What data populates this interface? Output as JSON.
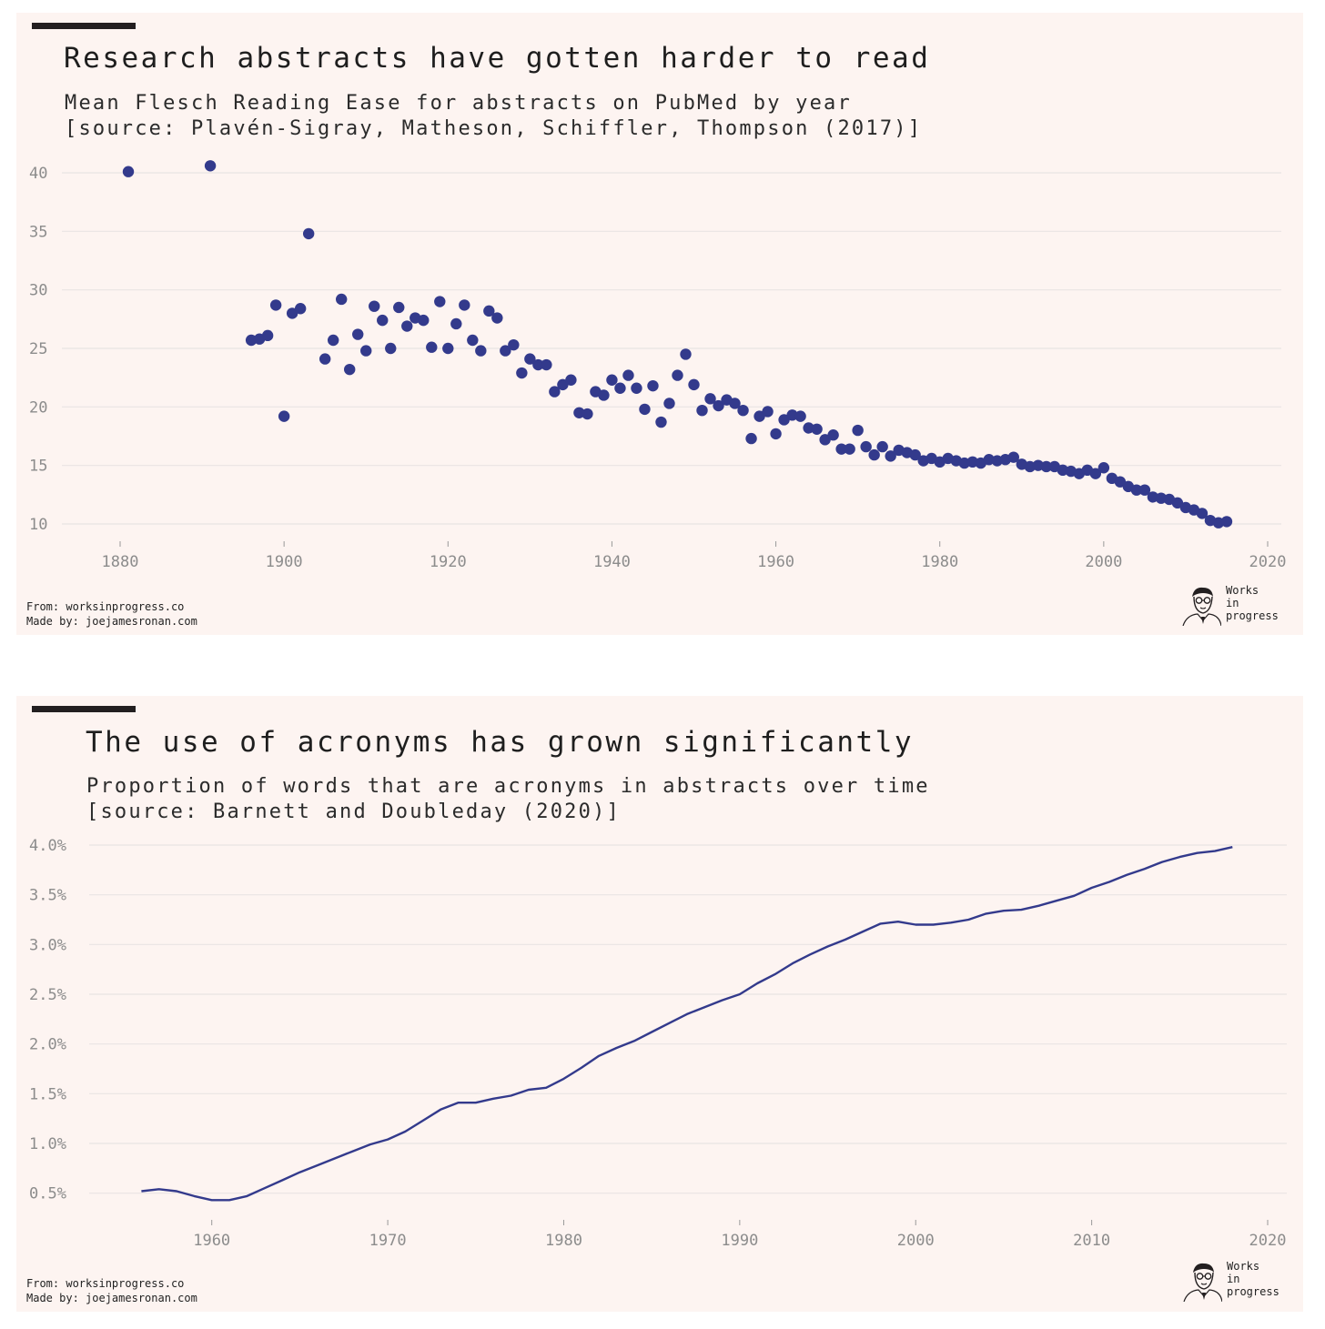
{
  "colors": {
    "panel_bg": "#fdf4f1",
    "mark": "#333a8c",
    "grid": "#e9e4e3",
    "tick_text": "#8c8c8c"
  },
  "charts": [
    {
      "title": "Research abstracts have gotten harder to read",
      "subtitle_line1": "Mean Flesch Reading Ease for abstracts on PubMed by year",
      "subtitle_line2": "[source: Plavén-Sigray, Matheson, Schiffler, Thompson (2017)]",
      "credit_from": "From: worksinprogress.co",
      "credit_made": "Made by: joejamesronan.com",
      "logo": {
        "icon": "portrait-sketch-icon",
        "line1": "Works",
        "line2": "in",
        "line3": "progress"
      }
    },
    {
      "title": "The use of acronyms has grown significantly",
      "subtitle_line1": "Proportion of words that are acronyms in abstracts over time",
      "subtitle_line2": "[source: Barnett and Doubleday (2020)]",
      "credit_from": "From: worksinprogress.co",
      "credit_made": "Made by: joejamesronan.com",
      "logo": {
        "icon": "portrait-sketch-icon",
        "line1": "Works",
        "line2": "in",
        "line3": "progress"
      }
    }
  ],
  "chart_data": [
    {
      "type": "scatter",
      "title": "Research abstracts have gotten harder to read",
      "subtitle": "Mean Flesch Reading Ease for abstracts on PubMed by year [source: Plavén-Sigray, Matheson, Schiffler, Thompson (2017)]",
      "xlabel": "",
      "ylabel": "",
      "xlim": [
        1879,
        2020
      ],
      "ylim": [
        10,
        40
      ],
      "xticks": [
        1880,
        1900,
        1920,
        1940,
        1960,
        1980,
        2000,
        2020
      ],
      "yticks": [
        10,
        15,
        20,
        25,
        30,
        35,
        40
      ],
      "grid": "horizontal",
      "legend": "none",
      "points": [
        [
          1881,
          40.1
        ],
        [
          1891,
          40.6
        ],
        [
          1896,
          25.7
        ],
        [
          1897,
          25.8
        ],
        [
          1898,
          26.1
        ],
        [
          1899,
          28.7
        ],
        [
          1900,
          19.2
        ],
        [
          1901,
          28.0
        ],
        [
          1902,
          28.4
        ],
        [
          1903,
          34.8
        ],
        [
          1905,
          24.1
        ],
        [
          1906,
          25.7
        ],
        [
          1907,
          29.2
        ],
        [
          1908,
          23.2
        ],
        [
          1909,
          26.2
        ],
        [
          1910,
          24.8
        ],
        [
          1911,
          28.6
        ],
        [
          1912,
          27.4
        ],
        [
          1913,
          25.0
        ],
        [
          1914,
          28.5
        ],
        [
          1915,
          26.9
        ],
        [
          1916,
          27.6
        ],
        [
          1917,
          27.4
        ],
        [
          1918,
          25.1
        ],
        [
          1919,
          29.0
        ],
        [
          1920,
          25.0
        ],
        [
          1921,
          27.1
        ],
        [
          1922,
          28.7
        ],
        [
          1923,
          25.7
        ],
        [
          1924,
          24.8
        ],
        [
          1925,
          28.2
        ],
        [
          1926,
          27.6
        ],
        [
          1927,
          24.8
        ],
        [
          1928,
          25.3
        ],
        [
          1929,
          22.9
        ],
        [
          1930,
          24.1
        ],
        [
          1931,
          23.6
        ],
        [
          1932,
          23.6
        ],
        [
          1933,
          21.3
        ],
        [
          1934,
          21.9
        ],
        [
          1935,
          22.3
        ],
        [
          1936,
          19.5
        ],
        [
          1937,
          19.4
        ],
        [
          1938,
          21.3
        ],
        [
          1939,
          21.0
        ],
        [
          1940,
          22.3
        ],
        [
          1941,
          21.6
        ],
        [
          1942,
          22.7
        ],
        [
          1943,
          21.6
        ],
        [
          1944,
          19.8
        ],
        [
          1945,
          21.8
        ],
        [
          1946,
          18.7
        ],
        [
          1947,
          20.3
        ],
        [
          1948,
          22.7
        ],
        [
          1949,
          24.5
        ],
        [
          1950,
          21.9
        ],
        [
          1951,
          19.7
        ],
        [
          1952,
          20.7
        ],
        [
          1953,
          20.1
        ],
        [
          1954,
          20.6
        ],
        [
          1955,
          20.3
        ],
        [
          1956,
          19.7
        ],
        [
          1957,
          17.3
        ],
        [
          1958,
          19.2
        ],
        [
          1959,
          19.6
        ],
        [
          1960,
          17.7
        ],
        [
          1961,
          18.9
        ],
        [
          1962,
          19.3
        ],
        [
          1963,
          19.2
        ],
        [
          1964,
          18.2
        ],
        [
          1965,
          18.1
        ],
        [
          1966,
          17.2
        ],
        [
          1967,
          17.6
        ],
        [
          1968,
          16.4
        ],
        [
          1969,
          16.4
        ],
        [
          1970,
          18.0
        ],
        [
          1971,
          16.6
        ],
        [
          1972,
          15.9
        ],
        [
          1973,
          16.6
        ],
        [
          1974,
          15.8
        ],
        [
          1975,
          16.3
        ],
        [
          1976,
          16.1
        ],
        [
          1977,
          15.9
        ],
        [
          1978,
          15.4
        ],
        [
          1979,
          15.6
        ],
        [
          1980,
          15.3
        ],
        [
          1981,
          15.6
        ],
        [
          1982,
          15.4
        ],
        [
          1983,
          15.2
        ],
        [
          1984,
          15.3
        ],
        [
          1985,
          15.2
        ],
        [
          1986,
          15.5
        ],
        [
          1987,
          15.4
        ],
        [
          1988,
          15.5
        ],
        [
          1989,
          15.7
        ],
        [
          1990,
          15.1
        ],
        [
          1991,
          14.9
        ],
        [
          1992,
          15.0
        ],
        [
          1993,
          14.9
        ],
        [
          1994,
          14.9
        ],
        [
          1995,
          14.6
        ],
        [
          1996,
          14.5
        ],
        [
          1997,
          14.3
        ],
        [
          1998,
          14.6
        ],
        [
          1999,
          14.3
        ],
        [
          2000,
          14.8
        ],
        [
          2001,
          13.9
        ],
        [
          2002,
          13.6
        ],
        [
          2003,
          13.2
        ],
        [
          2004,
          12.9
        ],
        [
          2005,
          12.9
        ],
        [
          2006,
          12.3
        ],
        [
          2007,
          12.2
        ],
        [
          2008,
          12.1
        ],
        [
          2009,
          11.8
        ],
        [
          2010,
          11.4
        ],
        [
          2011,
          11.2
        ],
        [
          2012,
          10.9
        ],
        [
          2013,
          10.3
        ],
        [
          2014,
          10.1
        ],
        [
          2015,
          10.2
        ]
      ]
    },
    {
      "type": "line",
      "title": "The use of acronyms has grown significantly",
      "subtitle": "Proportion of words that are acronyms in abstracts over time [source: Barnett and Doubleday (2020)]",
      "xlabel": "",
      "ylabel": "",
      "xlim": [
        1952,
        2020
      ],
      "ylim": [
        0.25,
        4.0
      ],
      "xticks": [
        1960,
        1970,
        1980,
        1990,
        2000,
        2010,
        2020
      ],
      "yticks": [
        0.5,
        1.0,
        1.5,
        2.0,
        2.5,
        3.0,
        3.5,
        4.0
      ],
      "ytick_labels": [
        "0.5%",
        "1.0%",
        "1.5%",
        "2.0%",
        "2.5%",
        "3.0%",
        "3.5%",
        "4.0%"
      ],
      "unit": "%",
      "grid": "horizontal",
      "legend": "none",
      "x": [
        1956,
        1957,
        1958,
        1959,
        1960,
        1961,
        1962,
        1963,
        1964,
        1965,
        1966,
        1967,
        1968,
        1969,
        1970,
        1971,
        1972,
        1973,
        1974,
        1975,
        1976,
        1977,
        1978,
        1979,
        1980,
        1981,
        1982,
        1983,
        1984,
        1985,
        1986,
        1987,
        1988,
        1989,
        1990,
        1991,
        1992,
        1993,
        1994,
        1995,
        1996,
        1997,
        1998,
        1999,
        2000,
        2001,
        2002,
        2003,
        2004,
        2005,
        2006,
        2007,
        2008,
        2009,
        2010,
        2011,
        2012,
        2013,
        2014,
        2015,
        2016,
        2017,
        2018
      ],
      "y": [
        0.52,
        0.54,
        0.52,
        0.47,
        0.43,
        0.43,
        0.47,
        0.55,
        0.63,
        0.71,
        0.78,
        0.85,
        0.92,
        0.99,
        1.04,
        1.12,
        1.23,
        1.34,
        1.41,
        1.41,
        1.45,
        1.48,
        1.54,
        1.56,
        1.65,
        1.76,
        1.88,
        1.96,
        2.03,
        2.12,
        2.21,
        2.3,
        2.37,
        2.44,
        2.5,
        2.61,
        2.7,
        2.81,
        2.9,
        2.98,
        3.05,
        3.13,
        3.21,
        3.23,
        3.2,
        3.2,
        3.22,
        3.25,
        3.31,
        3.34,
        3.35,
        3.39,
        3.44,
        3.49,
        3.57,
        3.63,
        3.7,
        3.76,
        3.83,
        3.88,
        3.92,
        3.94,
        3.98
      ]
    }
  ]
}
